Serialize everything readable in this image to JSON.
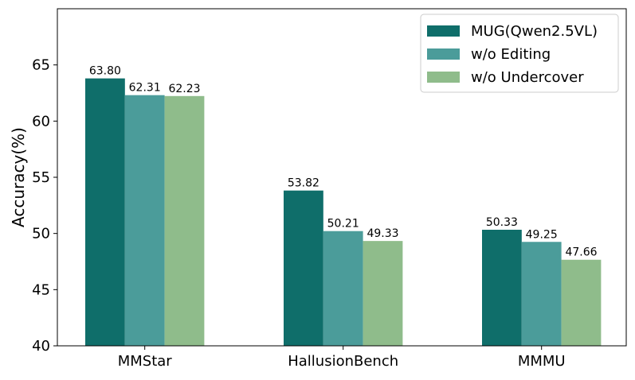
{
  "chart_data": {
    "type": "bar",
    "categories": [
      "MMStar",
      "HallusionBench",
      "MMMU"
    ],
    "series": [
      {
        "name": "MUG(Qwen2.5VL)",
        "values": [
          63.8,
          53.82,
          50.33
        ],
        "color": "#0f6e6a",
        "labels": [
          "63.80",
          "53.82",
          "50.33"
        ]
      },
      {
        "name": "w/o Editing",
        "values": [
          62.31,
          50.21,
          49.25
        ],
        "color": "#4b9c9a",
        "labels": [
          "62.31",
          "50.21",
          "49.25"
        ]
      },
      {
        "name": "w/o Undercover",
        "values": [
          62.23,
          49.33,
          47.66
        ],
        "color": "#8fbc8b",
        "labels": [
          "62.23",
          "49.33",
          "47.66"
        ]
      }
    ],
    "ylabel": "Accuracy(%)",
    "xlabel": "",
    "ylim": [
      40,
      70
    ],
    "yticks": [
      40,
      45,
      50,
      55,
      60,
      65
    ],
    "legend_position": "top-right",
    "grid": false
  }
}
